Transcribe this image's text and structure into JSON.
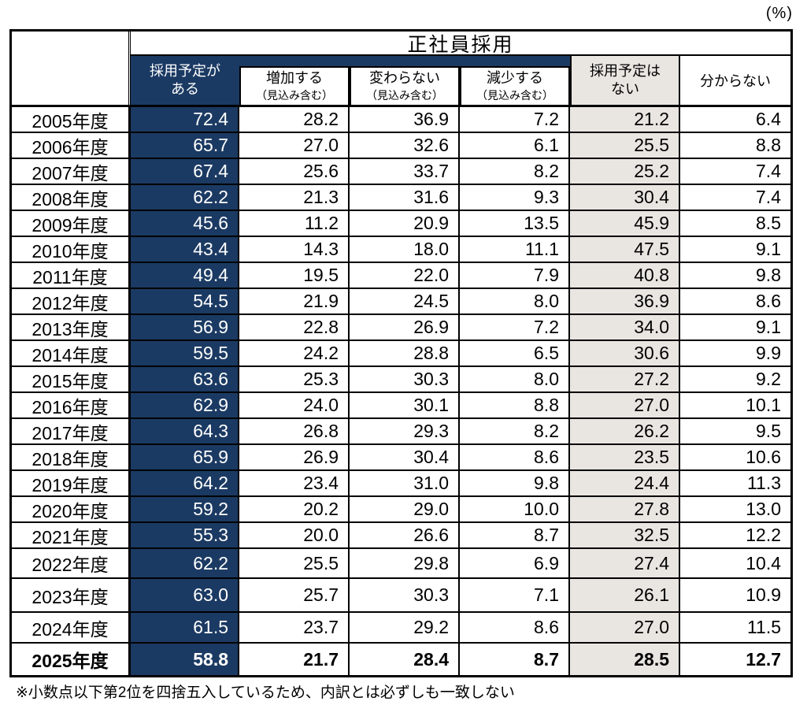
{
  "percent_label": "(%)",
  "colors": {
    "navy": "#1B3A63",
    "gray": "#E9E6E2",
    "border": "#000000"
  },
  "table": {
    "title": "正社員採用",
    "header": {
      "has_plans_line1": "採用予定が",
      "has_plans_line2": "ある",
      "increase_line1": "増加する",
      "increase_line2": "（見込み含む）",
      "unchanged_line1": "変わらない",
      "unchanged_line2": "（見込み含む）",
      "decrease_line1": "減少する",
      "decrease_line2": "（見込み含む）",
      "no_plans_line1": "採用予定は",
      "no_plans_line2": "ない",
      "unknown": "分からない"
    },
    "rows": [
      {
        "year": "2005年度",
        "has_plans": "72.4",
        "increase": "28.2",
        "unchanged": "36.9",
        "decrease": "7.2",
        "no_plans": "21.2",
        "unknown": "6.4"
      },
      {
        "year": "2006年度",
        "has_plans": "65.7",
        "increase": "27.0",
        "unchanged": "32.6",
        "decrease": "6.1",
        "no_plans": "25.5",
        "unknown": "8.8"
      },
      {
        "year": "2007年度",
        "has_plans": "67.4",
        "increase": "25.6",
        "unchanged": "33.7",
        "decrease": "8.2",
        "no_plans": "25.2",
        "unknown": "7.4"
      },
      {
        "year": "2008年度",
        "has_plans": "62.2",
        "increase": "21.3",
        "unchanged": "31.6",
        "decrease": "9.3",
        "no_plans": "30.4",
        "unknown": "7.4"
      },
      {
        "year": "2009年度",
        "has_plans": "45.6",
        "increase": "11.2",
        "unchanged": "20.9",
        "decrease": "13.5",
        "no_plans": "45.9",
        "unknown": "8.5"
      },
      {
        "year": "2010年度",
        "has_plans": "43.4",
        "increase": "14.3",
        "unchanged": "18.0",
        "decrease": "11.1",
        "no_plans": "47.5",
        "unknown": "9.1"
      },
      {
        "year": "2011年度",
        "has_plans": "49.4",
        "increase": "19.5",
        "unchanged": "22.0",
        "decrease": "7.9",
        "no_plans": "40.8",
        "unknown": "9.8"
      },
      {
        "year": "2012年度",
        "has_plans": "54.5",
        "increase": "21.9",
        "unchanged": "24.5",
        "decrease": "8.0",
        "no_plans": "36.9",
        "unknown": "8.6"
      },
      {
        "year": "2013年度",
        "has_plans": "56.9",
        "increase": "22.8",
        "unchanged": "26.9",
        "decrease": "7.2",
        "no_plans": "34.0",
        "unknown": "9.1"
      },
      {
        "year": "2014年度",
        "has_plans": "59.5",
        "increase": "24.2",
        "unchanged": "28.8",
        "decrease": "6.5",
        "no_plans": "30.6",
        "unknown": "9.9"
      },
      {
        "year": "2015年度",
        "has_plans": "63.6",
        "increase": "25.3",
        "unchanged": "30.3",
        "decrease": "8.0",
        "no_plans": "27.2",
        "unknown": "9.2"
      },
      {
        "year": "2016年度",
        "has_plans": "62.9",
        "increase": "24.0",
        "unchanged": "30.1",
        "decrease": "8.8",
        "no_plans": "27.0",
        "unknown": "10.1"
      },
      {
        "year": "2017年度",
        "has_plans": "64.3",
        "increase": "26.8",
        "unchanged": "29.3",
        "decrease": "8.2",
        "no_plans": "26.2",
        "unknown": "9.5"
      },
      {
        "year": "2018年度",
        "has_plans": "65.9",
        "increase": "26.9",
        "unchanged": "30.4",
        "decrease": "8.6",
        "no_plans": "23.5",
        "unknown": "10.6"
      },
      {
        "year": "2019年度",
        "has_plans": "64.2",
        "increase": "23.4",
        "unchanged": "31.0",
        "decrease": "9.8",
        "no_plans": "24.4",
        "unknown": "11.3"
      },
      {
        "year": "2020年度",
        "has_plans": "59.2",
        "increase": "20.2",
        "unchanged": "29.0",
        "decrease": "10.0",
        "no_plans": "27.8",
        "unknown": "13.0"
      },
      {
        "year": "2021年度",
        "has_plans": "55.3",
        "increase": "20.0",
        "unchanged": "26.6",
        "decrease": "8.7",
        "no_plans": "32.5",
        "unknown": "12.2"
      },
      {
        "year": "2022年度",
        "has_plans": "62.2",
        "increase": "25.5",
        "unchanged": "29.8",
        "decrease": "6.9",
        "no_plans": "27.4",
        "unknown": "10.4"
      },
      {
        "year": "2023年度",
        "has_plans": "63.0",
        "increase": "25.7",
        "unchanged": "30.3",
        "decrease": "7.1",
        "no_plans": "26.1",
        "unknown": "10.9"
      },
      {
        "year": "2024年度",
        "has_plans": "61.5",
        "increase": "23.7",
        "unchanged": "29.2",
        "decrease": "8.6",
        "no_plans": "27.0",
        "unknown": "11.5"
      },
      {
        "year": "2025年度",
        "has_plans": "58.8",
        "increase": "21.7",
        "unchanged": "28.4",
        "decrease": "8.7",
        "no_plans": "28.5",
        "unknown": "12.7"
      }
    ]
  },
  "footnote": "※小数点以下第2位を四捨五入しているため、内訳とは必ずしも一致しない",
  "chart_data": {
    "type": "table",
    "title": "正社員採用",
    "unit": "(%)",
    "categories": [
      "2005年度",
      "2006年度",
      "2007年度",
      "2008年度",
      "2009年度",
      "2010年度",
      "2011年度",
      "2012年度",
      "2013年度",
      "2014年度",
      "2015年度",
      "2016年度",
      "2017年度",
      "2018年度",
      "2019年度",
      "2020年度",
      "2021年度",
      "2022年度",
      "2023年度",
      "2024年度",
      "2025年度"
    ],
    "series": [
      {
        "name": "採用予定がある",
        "values": [
          72.4,
          65.7,
          67.4,
          62.2,
          45.6,
          43.4,
          49.4,
          54.5,
          56.9,
          59.5,
          63.6,
          62.9,
          64.3,
          65.9,
          64.2,
          59.2,
          55.3,
          62.2,
          63.0,
          61.5,
          58.8
        ]
      },
      {
        "name": "増加する（見込み含む）",
        "values": [
          28.2,
          27.0,
          25.6,
          21.3,
          11.2,
          14.3,
          19.5,
          21.9,
          22.8,
          24.2,
          25.3,
          24.0,
          26.8,
          26.9,
          23.4,
          20.2,
          20.0,
          25.5,
          25.7,
          23.7,
          21.7
        ]
      },
      {
        "name": "変わらない（見込み含む）",
        "values": [
          36.9,
          32.6,
          33.7,
          31.6,
          20.9,
          18.0,
          22.0,
          24.5,
          26.9,
          28.8,
          30.3,
          30.1,
          29.3,
          30.4,
          31.0,
          29.0,
          26.6,
          29.8,
          30.3,
          29.2,
          28.4
        ]
      },
      {
        "name": "減少する（見込み含む）",
        "values": [
          7.2,
          6.1,
          8.2,
          9.3,
          13.5,
          11.1,
          7.9,
          8.0,
          7.2,
          6.5,
          8.0,
          8.8,
          8.2,
          8.6,
          9.8,
          10.0,
          8.7,
          6.9,
          7.1,
          8.6,
          8.7
        ]
      },
      {
        "name": "採用予定はない",
        "values": [
          21.2,
          25.5,
          25.2,
          30.4,
          45.9,
          47.5,
          40.8,
          36.9,
          34.0,
          30.6,
          27.2,
          27.0,
          26.2,
          23.5,
          24.4,
          27.8,
          32.5,
          27.4,
          26.1,
          27.0,
          28.5
        ]
      },
      {
        "name": "分からない",
        "values": [
          6.4,
          8.8,
          7.4,
          7.4,
          8.5,
          9.1,
          9.8,
          8.6,
          9.1,
          9.9,
          9.2,
          10.1,
          9.5,
          10.6,
          11.3,
          13.0,
          12.2,
          10.4,
          10.9,
          11.5,
          12.7
        ]
      }
    ],
    "footnote": "※小数点以下第2位を四捨五入しているため、内訳とは必ずしも一致しない"
  }
}
